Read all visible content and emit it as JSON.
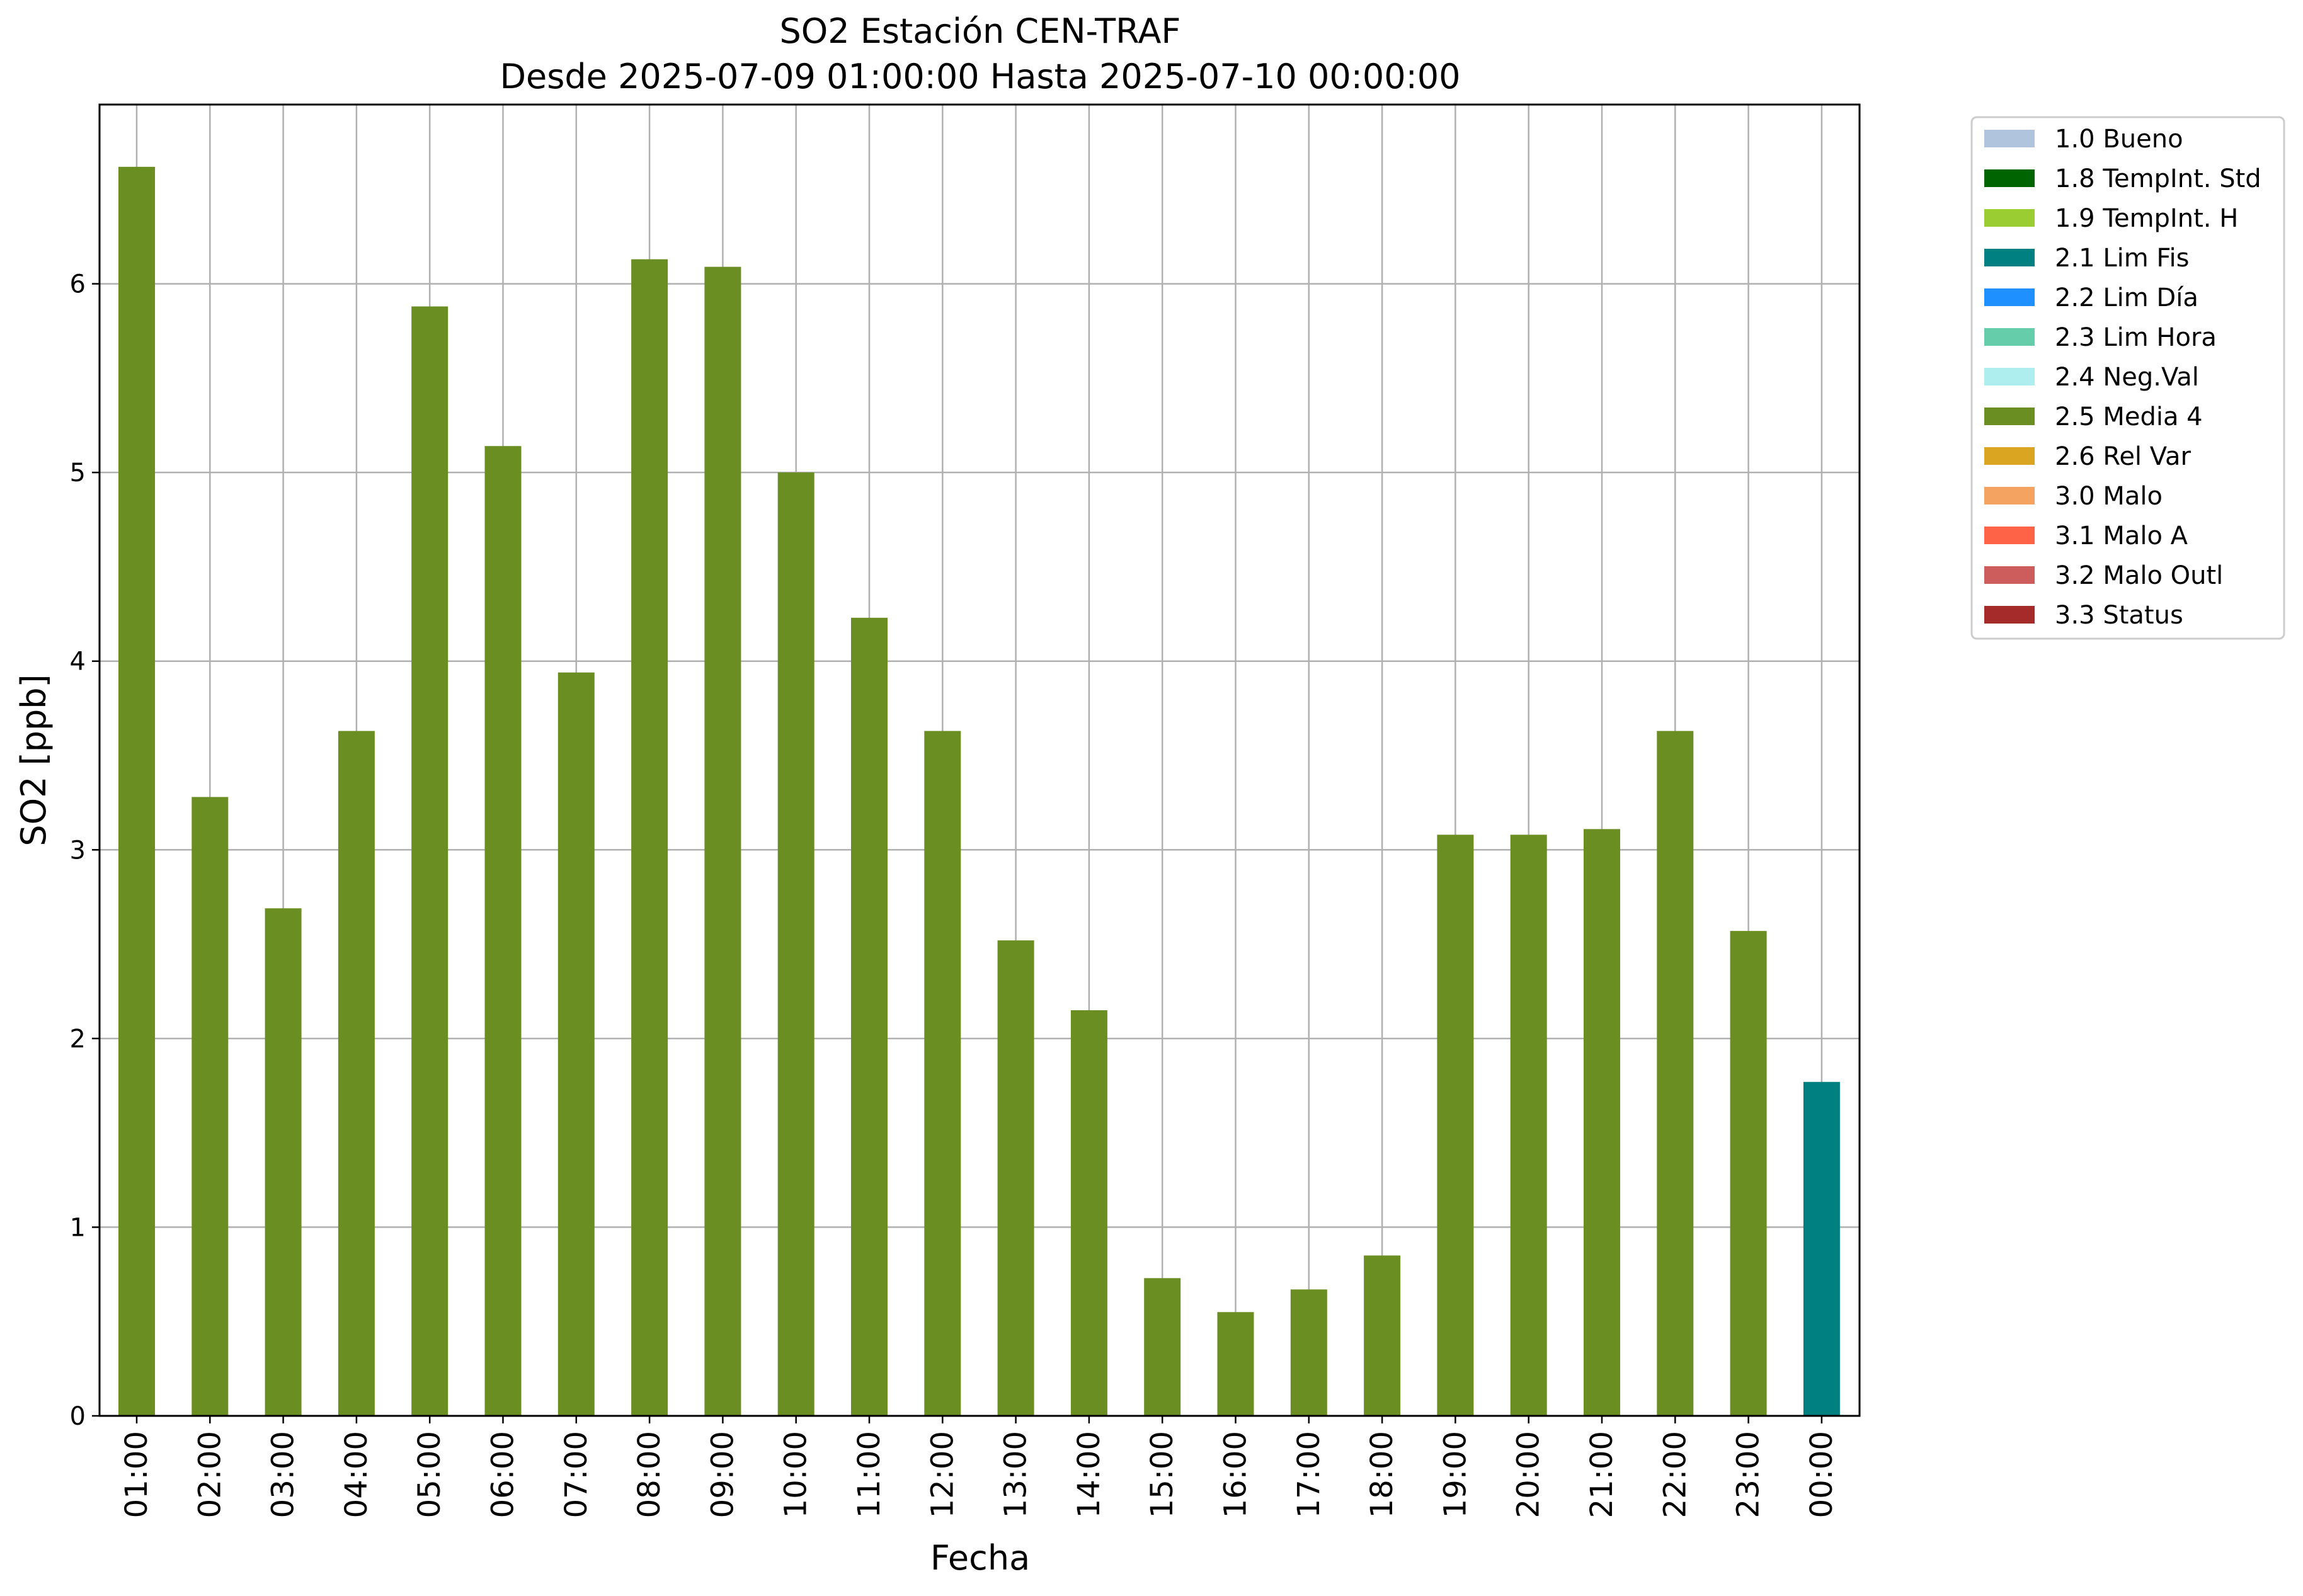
{
  "chart_data": {
    "type": "bar",
    "title": "SO2 Estación CEN-TRAF",
    "subtitle": "Desde 2025-07-09 01:00:00 Hasta 2025-07-10 00:00:00",
    "xlabel": "Fecha",
    "ylabel": "SO2 [ppb]",
    "ylim": [
      0,
      6.95
    ],
    "yticks": [
      0,
      1,
      2,
      3,
      4,
      5,
      6
    ],
    "grid": true,
    "legend_position": "outside-right-top",
    "categories": [
      "01:00",
      "02:00",
      "03:00",
      "04:00",
      "05:00",
      "06:00",
      "07:00",
      "08:00",
      "09:00",
      "10:00",
      "11:00",
      "12:00",
      "13:00",
      "14:00",
      "15:00",
      "16:00",
      "17:00",
      "18:00",
      "19:00",
      "20:00",
      "21:00",
      "22:00",
      "23:00",
      "00:00"
    ],
    "values": [
      6.62,
      3.28,
      2.69,
      3.63,
      5.88,
      5.14,
      3.94,
      6.13,
      6.09,
      5.0,
      4.23,
      3.63,
      2.52,
      2.15,
      0.73,
      0.55,
      0.67,
      0.85,
      3.08,
      3.08,
      3.11,
      3.63,
      2.57,
      1.77
    ],
    "flags": [
      "2.5 Media 4",
      "2.5 Media 4",
      "2.5 Media 4",
      "2.5 Media 4",
      "2.5 Media 4",
      "2.5 Media 4",
      "2.5 Media 4",
      "2.5 Media 4",
      "2.5 Media 4",
      "2.5 Media 4",
      "2.5 Media 4",
      "2.5 Media 4",
      "2.5 Media 4",
      "2.5 Media 4",
      "2.5 Media 4",
      "2.5 Media 4",
      "2.5 Media 4",
      "2.5 Media 4",
      "2.5 Media 4",
      "2.5 Media 4",
      "2.5 Media 4",
      "2.5 Media 4",
      "2.5 Media 4",
      "2.1 Lim Fis"
    ],
    "legend": [
      {
        "label": "1.0 Bueno",
        "color": "#b0c4de"
      },
      {
        "label": "1.8 TempInt. Std",
        "color": "#006400"
      },
      {
        "label": "1.9 TempInt. H",
        "color": "#9acd32"
      },
      {
        "label": "2.1 Lim Fis",
        "color": "#008080"
      },
      {
        "label": "2.2 Lim Día",
        "color": "#1e90ff"
      },
      {
        "label": "2.3 Lim Hora",
        "color": "#66cdaa"
      },
      {
        "label": "2.4 Neg.Val",
        "color": "#afeeee"
      },
      {
        "label": "2.5 Media 4",
        "color": "#6b8e23"
      },
      {
        "label": "2.6 Rel Var",
        "color": "#daa520"
      },
      {
        "label": "3.0 Malo",
        "color": "#f4a460"
      },
      {
        "label": "3.1 Malo A",
        "color": "#ff6347"
      },
      {
        "label": "3.2 Malo Outl",
        "color": "#cd5c5c"
      },
      {
        "label": "3.3 Status",
        "color": "#a52a2a"
      }
    ]
  }
}
